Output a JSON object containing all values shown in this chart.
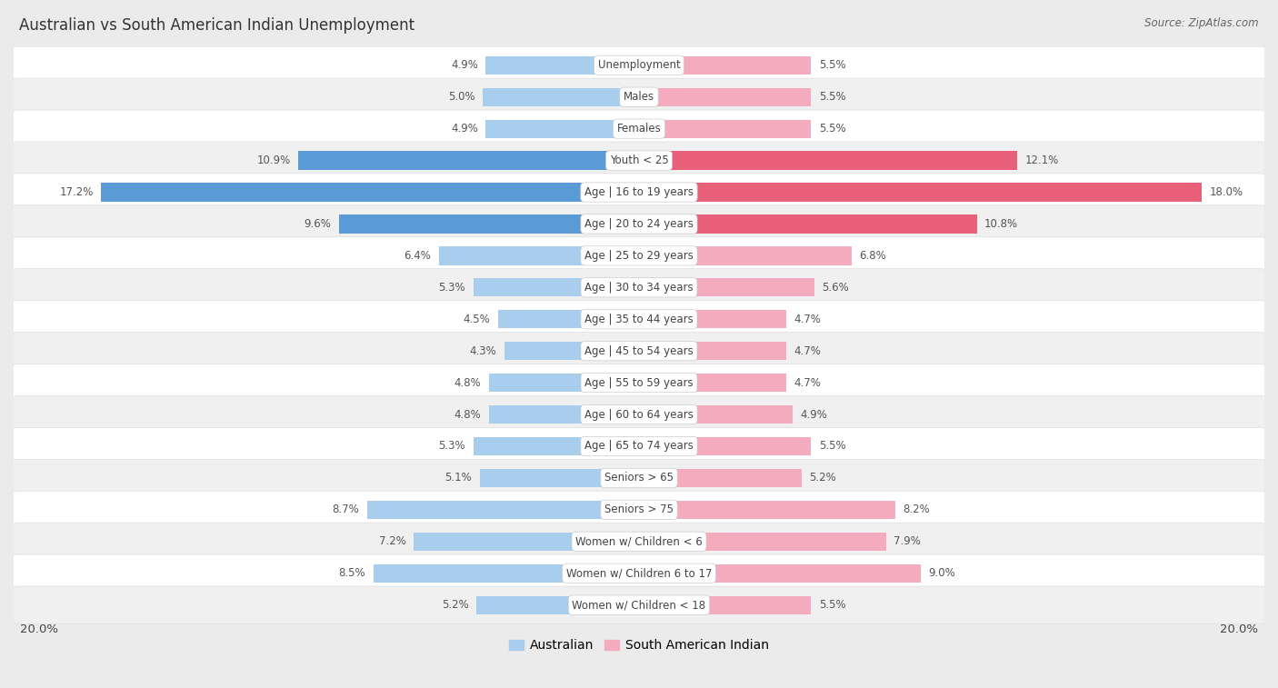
{
  "title": "Australian vs South American Indian Unemployment",
  "source": "Source: ZipAtlas.com",
  "categories": [
    "Unemployment",
    "Males",
    "Females",
    "Youth < 25",
    "Age | 16 to 19 years",
    "Age | 20 to 24 years",
    "Age | 25 to 29 years",
    "Age | 30 to 34 years",
    "Age | 35 to 44 years",
    "Age | 45 to 54 years",
    "Age | 55 to 59 years",
    "Age | 60 to 64 years",
    "Age | 65 to 74 years",
    "Seniors > 65",
    "Seniors > 75",
    "Women w/ Children < 6",
    "Women w/ Children 6 to 17",
    "Women w/ Children < 18"
  ],
  "australian": [
    4.9,
    5.0,
    4.9,
    10.9,
    17.2,
    9.6,
    6.4,
    5.3,
    4.5,
    4.3,
    4.8,
    4.8,
    5.3,
    5.1,
    8.7,
    7.2,
    8.5,
    5.2
  ],
  "south_american": [
    5.5,
    5.5,
    5.5,
    12.1,
    18.0,
    10.8,
    6.8,
    5.6,
    4.7,
    4.7,
    4.7,
    4.9,
    5.5,
    5.2,
    8.2,
    7.9,
    9.0,
    5.5
  ],
  "aus_color_normal": "#A8CDED",
  "aus_color_highlight": "#5B9BD5",
  "sam_color_normal": "#F4ABBE",
  "sam_color_highlight": "#E8607A",
  "row_color_white": "#FFFFFF",
  "row_color_gray": "#F0F0F0",
  "separator_color": "#DDDDDD",
  "background_color": "#EBEBEB",
  "label_bg": "#FFFFFF",
  "text_color": "#444444",
  "value_label_color": "#555555",
  "title_color": "#333333",
  "source_color": "#666666",
  "xlim": 20.0,
  "highlight_threshold": 9.5,
  "legend_australian": "Australian",
  "legend_south_american": "South American Indian"
}
